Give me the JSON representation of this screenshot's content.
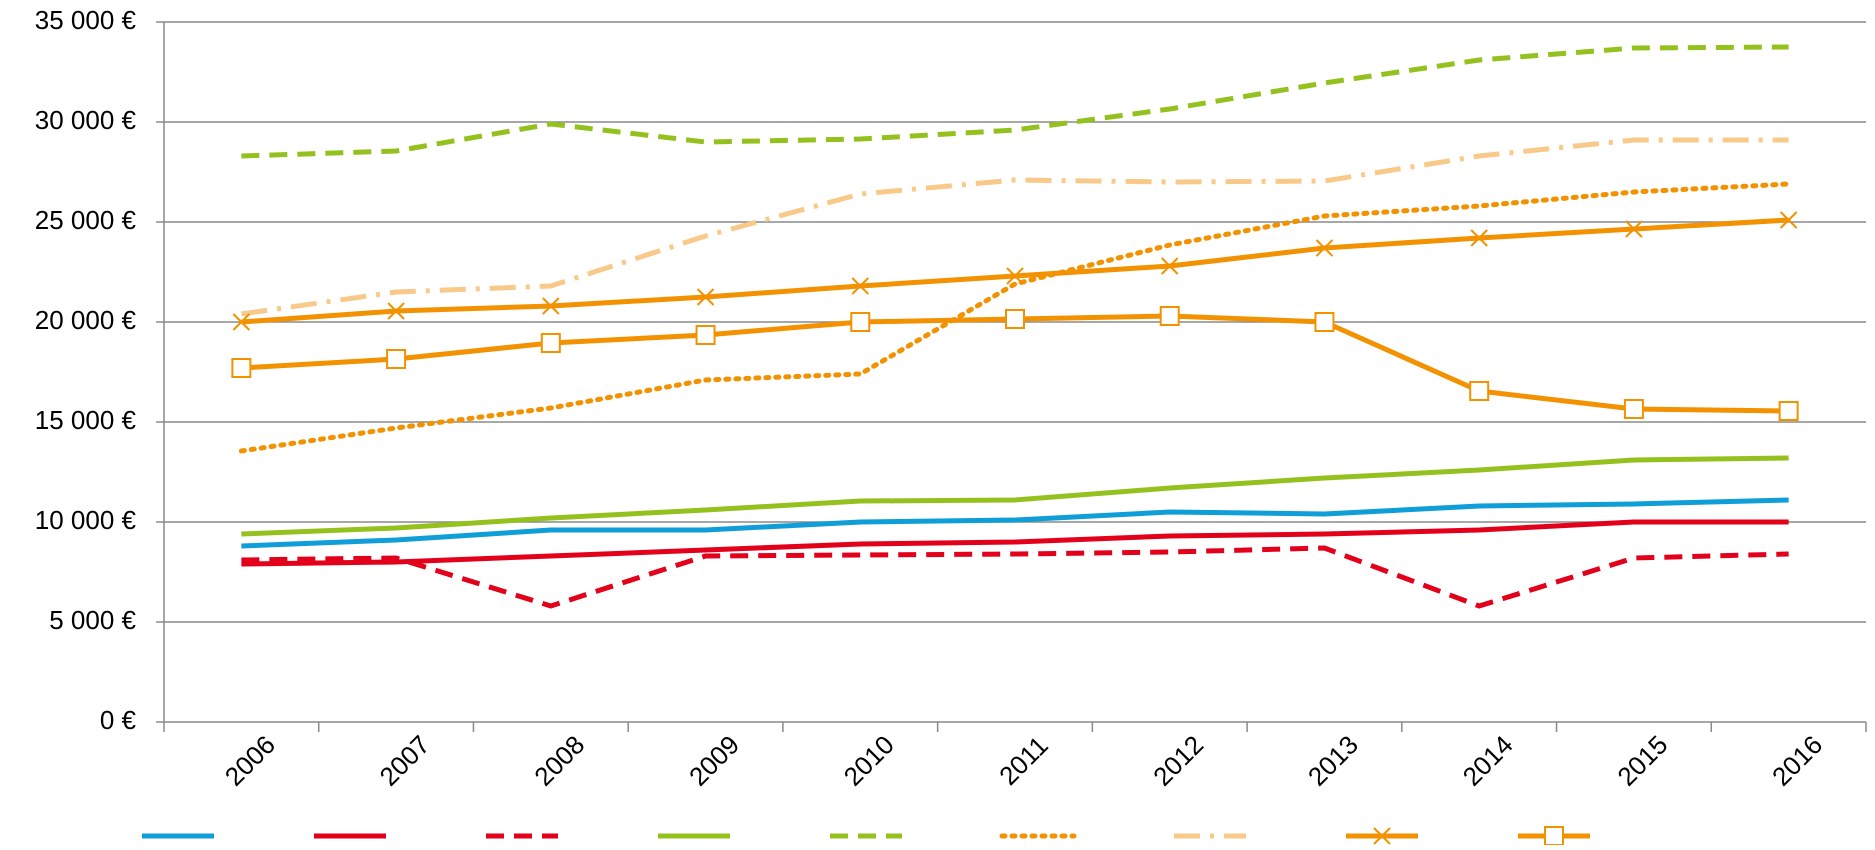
{
  "chart_data": {
    "type": "line",
    "categories": [
      "2006",
      "2007",
      "2008",
      "2009",
      "2010",
      "2011",
      "2012",
      "2013",
      "2014",
      "2015",
      "2016"
    ],
    "ylim": [
      0,
      35000
    ],
    "yticks": [
      {
        "value": 0,
        "label": "0 €"
      },
      {
        "value": 5000,
        "label": "5 000 €"
      },
      {
        "value": 10000,
        "label": "10 000 €"
      },
      {
        "value": 15000,
        "label": "15 000 €"
      },
      {
        "value": 20000,
        "label": "20 000 €"
      },
      {
        "value": 25000,
        "label": "25 000 €"
      },
      {
        "value": 30000,
        "label": "30 000 €"
      },
      {
        "value": 35000,
        "label": "35 000 €"
      }
    ],
    "grid": true,
    "legend": "bottom",
    "series": [
      {
        "color": "#0f9ed8",
        "dash": "solid",
        "values": [
          8800,
          9100,
          9600,
          9600,
          10000,
          10100,
          10500,
          10400,
          10800,
          10900,
          11100
        ]
      },
      {
        "color": "#e3001b",
        "dash": "solid",
        "values": [
          7900,
          8000,
          8300,
          8600,
          8900,
          9000,
          9300,
          9400,
          9600,
          10000,
          10000
        ]
      },
      {
        "color": "#e3001b",
        "dash": "dashed",
        "values": [
          8100,
          8200,
          5800,
          8300,
          8350,
          8400,
          8500,
          8700,
          5800,
          8200,
          8400
        ]
      },
      {
        "color": "#95c11f",
        "dash": "solid",
        "values": [
          9400,
          9700,
          10200,
          10600,
          11050,
          11100,
          11700,
          12200,
          12600,
          13100,
          13200
        ]
      },
      {
        "color": "#95c11f",
        "dash": "dashed",
        "values": [
          28300,
          28550,
          29900,
          29000,
          29150,
          29600,
          30650,
          31950,
          33100,
          33700,
          33750
        ]
      },
      {
        "color": "#f39200",
        "dash": "dotted",
        "values": [
          13550,
          14700,
          15700,
          17100,
          17400,
          21900,
          23850,
          25300,
          25800,
          26500,
          26900
        ]
      },
      {
        "color": "#f9c98a",
        "dash": "dashdot",
        "values": [
          20400,
          21500,
          21800,
          24300,
          26400,
          27100,
          27000,
          27050,
          28300,
          29100,
          29100
        ]
      },
      {
        "color": "#f39200",
        "dash": "solid",
        "marker": "x",
        "values": [
          20000,
          20550,
          20800,
          21250,
          21800,
          22300,
          22800,
          23700,
          24200,
          24650,
          25100
        ]
      },
      {
        "color": "#f39200",
        "dash": "solid",
        "marker": "square",
        "values": [
          17700,
          18150,
          18950,
          19350,
          20000,
          20150,
          20300,
          20000,
          16550,
          15650,
          15550
        ]
      }
    ]
  }
}
